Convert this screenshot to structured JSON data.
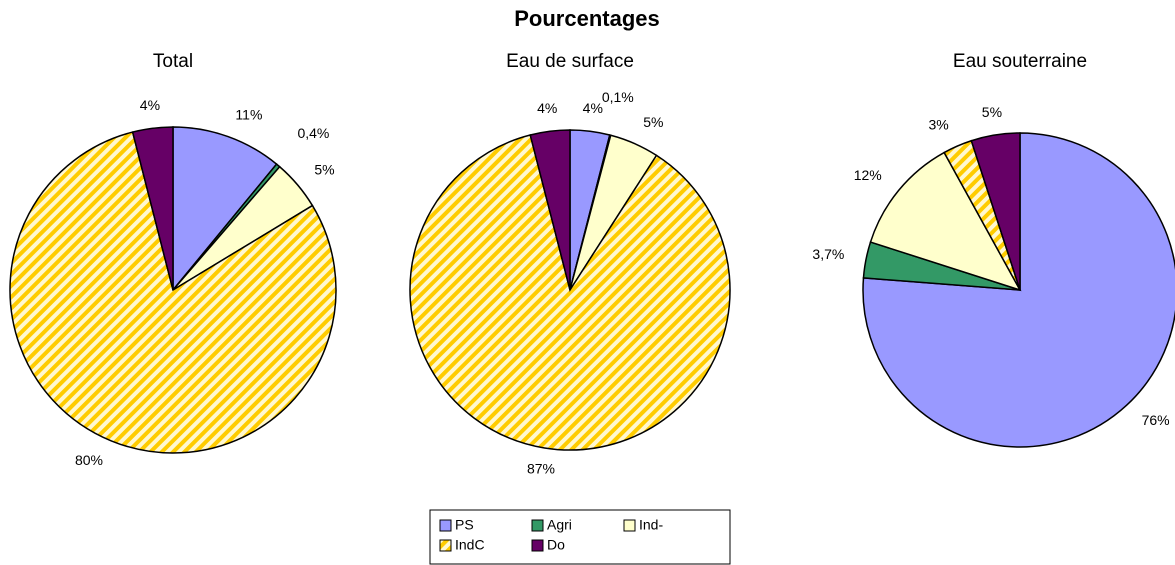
{
  "title": "Pourcentages",
  "chart_data": [
    {
      "type": "pie",
      "title": "Total",
      "categories": [
        "PS",
        "Agri",
        "Ind-",
        "IndC",
        "Do"
      ],
      "values": [
        11,
        0.4,
        5,
        80,
        4
      ],
      "value_labels": [
        "11%",
        "0,4%",
        "5%",
        "80%",
        "4%"
      ],
      "colors": [
        "#9999ff",
        "#339966",
        "#ffffcc",
        "#ffcc00",
        "#660066"
      ],
      "hatched": [
        false,
        false,
        false,
        true,
        false
      ]
    },
    {
      "type": "pie",
      "title": "Eau de surface",
      "categories": [
        "PS",
        "Agri",
        "Ind-",
        "IndC",
        "Do"
      ],
      "values": [
        4,
        0.1,
        5,
        87,
        4
      ],
      "value_labels": [
        "4%",
        "0,1%",
        "5%",
        "87%",
        "4%"
      ],
      "colors": [
        "#9999ff",
        "#339966",
        "#ffffcc",
        "#ffcc00",
        "#660066"
      ],
      "hatched": [
        false,
        false,
        false,
        true,
        false
      ]
    },
    {
      "type": "pie",
      "title": "Eau souterraine",
      "categories": [
        "PS",
        "Agri",
        "Ind-",
        "IndC",
        "Do"
      ],
      "values": [
        76,
        3.7,
        12,
        3,
        5
      ],
      "value_labels": [
        "76%",
        "3,7%",
        "12%",
        "3%",
        "5%"
      ],
      "colors": [
        "#9999ff",
        "#339966",
        "#ffffcc",
        "#ffcc00",
        "#660066"
      ],
      "hatched": [
        false,
        false,
        false,
        true,
        false
      ]
    }
  ]
}
